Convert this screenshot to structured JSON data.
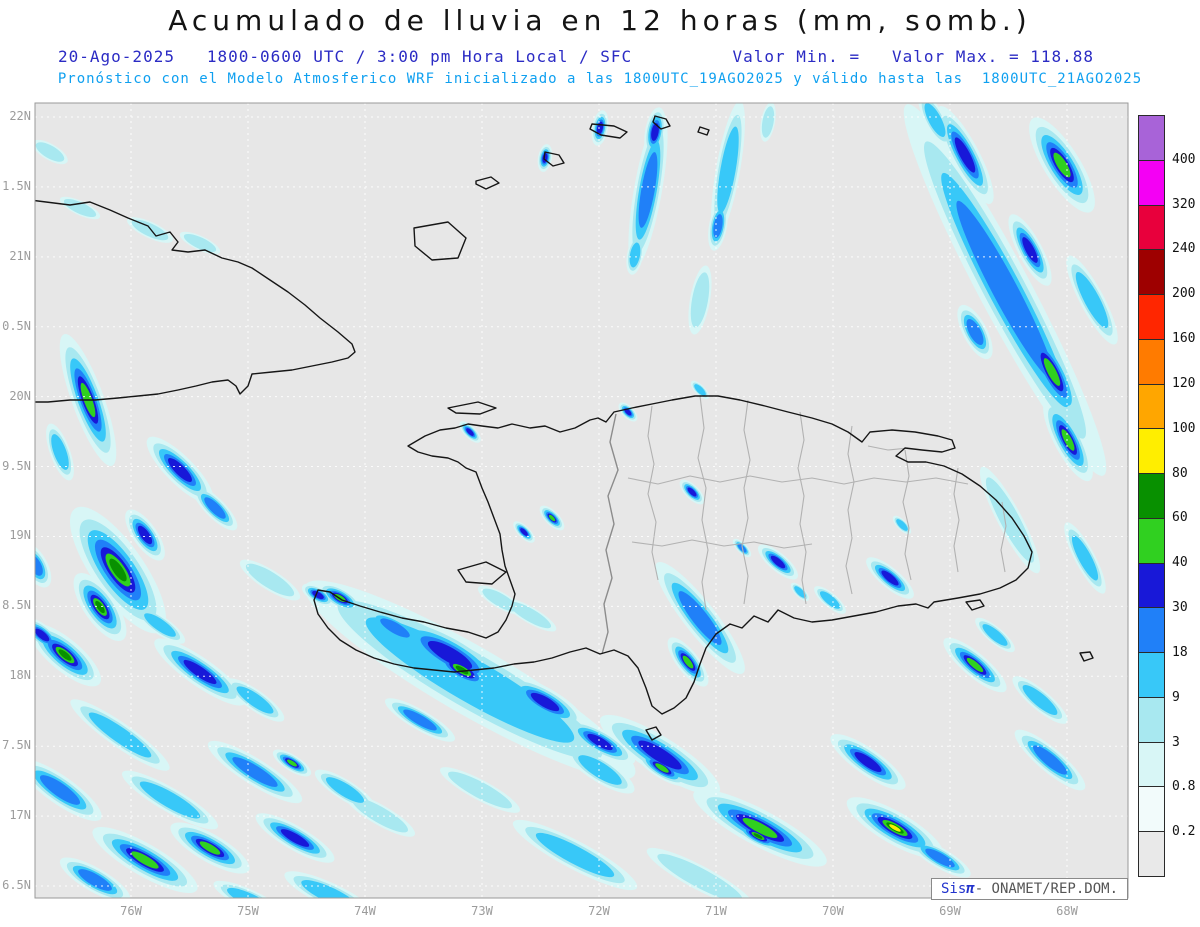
{
  "header": {
    "title": "Acumulado de lluvia en 12 horas (mm, somb.)",
    "line2_left": "20-Ago-2025   1800-0600 UTC / 3:00 pm Hora Local / SFC",
    "line2_right": "Valor Min. =   Valor Max. = 118.88",
    "line3": "Pronóstico con el Modelo Atmosferico WRF inicializado a las 1800UTC_19AGO2025 y válido hasta las  1800UTC_21AGO2025"
  },
  "map": {
    "x_ticks": [
      "76W",
      "75W",
      "74W",
      "73W",
      "72W",
      "71W",
      "70W",
      "69W",
      "68W"
    ],
    "y_ticks": [
      "22N",
      "1.5N",
      "21N",
      "0.5N",
      "20N",
      "9.5N",
      "19N",
      "8.5N",
      "18N",
      "7.5N",
      "17N",
      "6.5N"
    ],
    "credit_sis": "Sis",
    "credit_pi": "π",
    "credit_rest": "- ONAMET/REP.DOM."
  },
  "colorbar": {
    "labels": [
      "400",
      "320",
      "240",
      "200",
      "160",
      "120",
      "100",
      "80",
      "60",
      "40",
      "30",
      "18",
      "9",
      "3",
      "0.8",
      "0.2"
    ],
    "colors_top_to_bottom": [
      "#a863d8",
      "#f400f4",
      "#e8003c",
      "#9e0000",
      "#ff2600",
      "#ff7b00",
      "#ffa600",
      "#ffee00",
      "#089000",
      "#30d020",
      "#1818d8",
      "#2080f8",
      "#38c8f8",
      "#a8e8f0",
      "#d8f6f6",
      "#f2fbfb",
      "#e9e9e9"
    ]
  },
  "chart_data": {
    "type": "heatmap",
    "title": "Acumulado de lluvia en 12 horas (mm, somb.)",
    "units": "mm",
    "shading_levels": [
      0.2,
      0.8,
      3,
      9,
      18,
      30,
      40,
      60,
      80,
      100,
      120,
      160,
      200,
      240,
      320,
      400
    ],
    "valor_max": 118.88,
    "x_tick_labels": [
      "76W",
      "75W",
      "74W",
      "73W",
      "72W",
      "71W",
      "70W",
      "69W",
      "68W"
    ],
    "y_tick_labels": [
      "22N",
      "1.5N",
      "21N",
      "0.5N",
      "20N",
      "9.5N",
      "19N",
      "8.5N",
      "18N",
      "7.5N",
      "17N",
      "6.5N"
    ],
    "legend_position": "right",
    "grid": true
  }
}
